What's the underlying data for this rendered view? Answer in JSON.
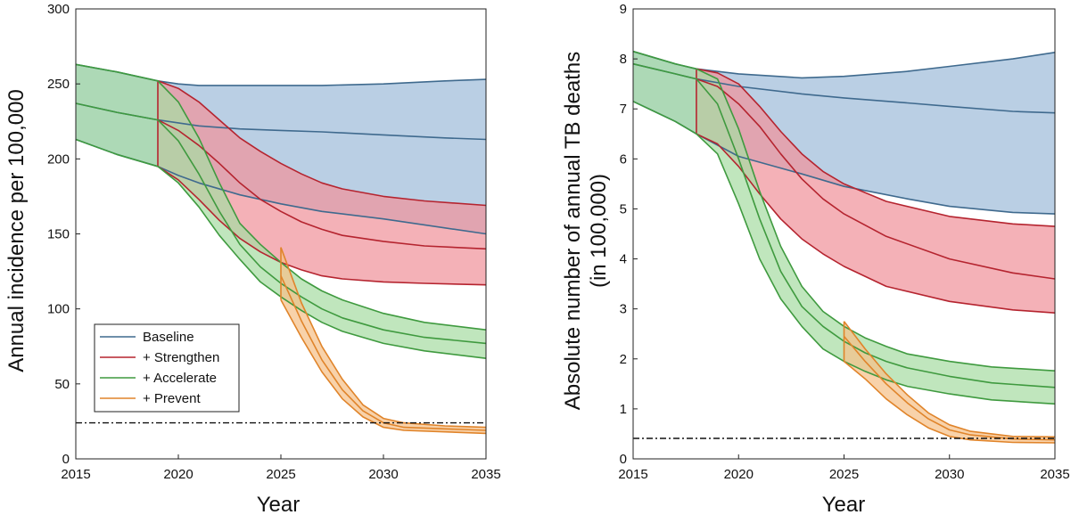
{
  "chart_data": [
    {
      "type": "area",
      "xlabel": "Year",
      "ylabel": "Annual incidence per 100,000",
      "xlim": [
        2015,
        2035
      ],
      "ylim": [
        0,
        300
      ],
      "xticks": [
        2015,
        2020,
        2025,
        2030,
        2035
      ],
      "yticks": [
        0,
        50,
        100,
        150,
        200,
        250,
        300
      ],
      "xtick_labels": [
        "2015",
        "2020",
        "2025",
        "2030",
        "2035"
      ],
      "ytick_labels": [
        "0",
        "50",
        "100",
        "150",
        "200",
        "250",
        "300"
      ],
      "target_line": 24,
      "legend": {
        "placement": "bottom-left",
        "entries": [
          {
            "name": "Baseline",
            "color": "#3f6a8e"
          },
          {
            "name": "+ Strengthen",
            "color": "#b5242f"
          },
          {
            "name": "+ Accelerate",
            "color": "#3f9a3f"
          },
          {
            "name": "+ Prevent",
            "color": "#e0842a"
          }
        ]
      },
      "series": [
        {
          "name": "Baseline",
          "color": "#3f6a8e",
          "fill": "#9fbcd9",
          "x": [
            2015,
            2017,
            2019,
            2020,
            2021,
            2023,
            2025,
            2027,
            2030,
            2033,
            2035
          ],
          "mid": [
            237,
            231,
            226,
            224,
            222,
            220,
            219,
            218,
            216,
            214,
            213
          ],
          "lo": [
            213,
            203,
            195,
            189,
            184,
            176,
            170,
            165,
            160,
            154,
            150
          ],
          "hi": [
            263,
            258,
            252,
            250,
            249,
            249,
            249,
            249,
            250,
            252,
            253
          ]
        },
        {
          "name": "+ Strengthen",
          "color": "#b5242f",
          "fill": "#f0939b",
          "x": [
            2019,
            2020,
            2021,
            2022,
            2023,
            2024,
            2025,
            2026,
            2027,
            2028,
            2030,
            2032,
            2035
          ],
          "mid": [
            226,
            219,
            209,
            197,
            184,
            173,
            165,
            158,
            153,
            149,
            145,
            142,
            140
          ],
          "lo": [
            195,
            186,
            173,
            159,
            147,
            138,
            131,
            126,
            122,
            120,
            118,
            117,
            116
          ],
          "hi": [
            252,
            247,
            238,
            226,
            214,
            205,
            197,
            190,
            184,
            180,
            175,
            172,
            169
          ]
        },
        {
          "name": "+ Accelerate",
          "color": "#3f9a3f",
          "fill": "#a8dca4",
          "x": [
            2015,
            2017,
            2019,
            2020,
            2021,
            2022,
            2023,
            2024,
            2025,
            2026,
            2027,
            2028,
            2030,
            2032,
            2035
          ],
          "mid": [
            237,
            231,
            226,
            212,
            190,
            165,
            143,
            128,
            117,
            108,
            100,
            94,
            86,
            81,
            77
          ],
          "lo": [
            213,
            203,
            195,
            184,
            168,
            149,
            133,
            118,
            108,
            99,
            91,
            85,
            77,
            72,
            67
          ],
          "hi": [
            263,
            258,
            252,
            238,
            214,
            184,
            157,
            143,
            131,
            120,
            112,
            106,
            97,
            91,
            86
          ]
        },
        {
          "name": "+ Prevent",
          "color": "#e0842a",
          "fill": "#f5c089",
          "x": [
            2025,
            2026,
            2027,
            2028,
            2029,
            2030,
            2031,
            2033,
            2035
          ],
          "mid": [
            122,
            92,
            66,
            46,
            32,
            24,
            21,
            20,
            19
          ],
          "lo": [
            106,
            81,
            58,
            40,
            28,
            21,
            19,
            18,
            17
          ],
          "hi": [
            141,
            104,
            75,
            53,
            36,
            27,
            24,
            22,
            21
          ]
        }
      ]
    },
    {
      "type": "area",
      "xlabel": "Year",
      "ylabel_lines": [
        "Absolute number of annual TB deaths",
        "(in 100,000)"
      ],
      "xlim": [
        2015,
        2035
      ],
      "ylim": [
        0,
        9
      ],
      "xticks": [
        2015,
        2020,
        2025,
        2030,
        2035
      ],
      "yticks": [
        0,
        1,
        2,
        3,
        4,
        5,
        6,
        7,
        8,
        9
      ],
      "xtick_labels": [
        "2015",
        "2020",
        "2025",
        "2030",
        "2035"
      ],
      "ytick_labels": [
        "0",
        "1",
        "2",
        "3",
        "4",
        "5",
        "6",
        "7",
        "8",
        "9"
      ],
      "target_line": 0.41,
      "series": [
        {
          "name": "Baseline",
          "color": "#3f6a8e",
          "fill": "#9fbcd9",
          "x": [
            2015,
            2017,
            2018,
            2020,
            2023,
            2025,
            2028,
            2030,
            2033,
            2035
          ],
          "mid": [
            7.9,
            7.7,
            7.6,
            7.45,
            7.3,
            7.22,
            7.12,
            7.05,
            6.95,
            6.92
          ],
          "lo": [
            7.15,
            6.75,
            6.5,
            6.05,
            5.7,
            5.45,
            5.2,
            5.05,
            4.93,
            4.9
          ],
          "hi": [
            8.15,
            7.9,
            7.8,
            7.7,
            7.62,
            7.65,
            7.75,
            7.85,
            8.0,
            8.13
          ]
        },
        {
          "name": "+ Strengthen",
          "color": "#b5242f",
          "fill": "#f0939b",
          "x": [
            2018,
            2019,
            2020,
            2021,
            2022,
            2023,
            2024,
            2025,
            2027,
            2030,
            2033,
            2035
          ],
          "mid": [
            7.6,
            7.45,
            7.1,
            6.65,
            6.1,
            5.6,
            5.2,
            4.9,
            4.45,
            4.0,
            3.72,
            3.6
          ],
          "lo": [
            6.5,
            6.3,
            5.85,
            5.3,
            4.8,
            4.4,
            4.1,
            3.85,
            3.45,
            3.15,
            2.98,
            2.92
          ],
          "hi": [
            7.8,
            7.72,
            7.5,
            7.05,
            6.55,
            6.1,
            5.75,
            5.5,
            5.15,
            4.85,
            4.7,
            4.65
          ]
        },
        {
          "name": "+ Accelerate",
          "color": "#3f9a3f",
          "fill": "#a8dca4",
          "x": [
            2015,
            2017,
            2018,
            2019,
            2020,
            2021,
            2022,
            2023,
            2024,
            2025,
            2026,
            2027,
            2028,
            2030,
            2032,
            2035
          ],
          "mid": [
            7.9,
            7.7,
            7.6,
            7.1,
            6.0,
            4.8,
            3.75,
            3.05,
            2.65,
            2.35,
            2.12,
            1.95,
            1.82,
            1.65,
            1.52,
            1.43
          ],
          "lo": [
            7.15,
            6.75,
            6.5,
            6.1,
            5.1,
            4.0,
            3.2,
            2.65,
            2.2,
            1.95,
            1.75,
            1.58,
            1.45,
            1.3,
            1.18,
            1.1
          ],
          "hi": [
            8.15,
            7.9,
            7.8,
            7.6,
            6.6,
            5.35,
            4.25,
            3.45,
            2.95,
            2.65,
            2.42,
            2.25,
            2.1,
            1.95,
            1.84,
            1.76
          ]
        },
        {
          "name": "+ Prevent",
          "color": "#e0842a",
          "fill": "#f5c089",
          "x": [
            2025,
            2026,
            2027,
            2028,
            2029,
            2030,
            2031,
            2033,
            2035
          ],
          "mid": [
            2.45,
            1.95,
            1.5,
            1.12,
            0.8,
            0.58,
            0.48,
            0.4,
            0.38
          ],
          "lo": [
            1.95,
            1.6,
            1.2,
            0.88,
            0.62,
            0.45,
            0.38,
            0.33,
            0.32
          ],
          "hi": [
            2.75,
            2.2,
            1.7,
            1.28,
            0.92,
            0.68,
            0.55,
            0.45,
            0.44
          ]
        }
      ]
    }
  ]
}
